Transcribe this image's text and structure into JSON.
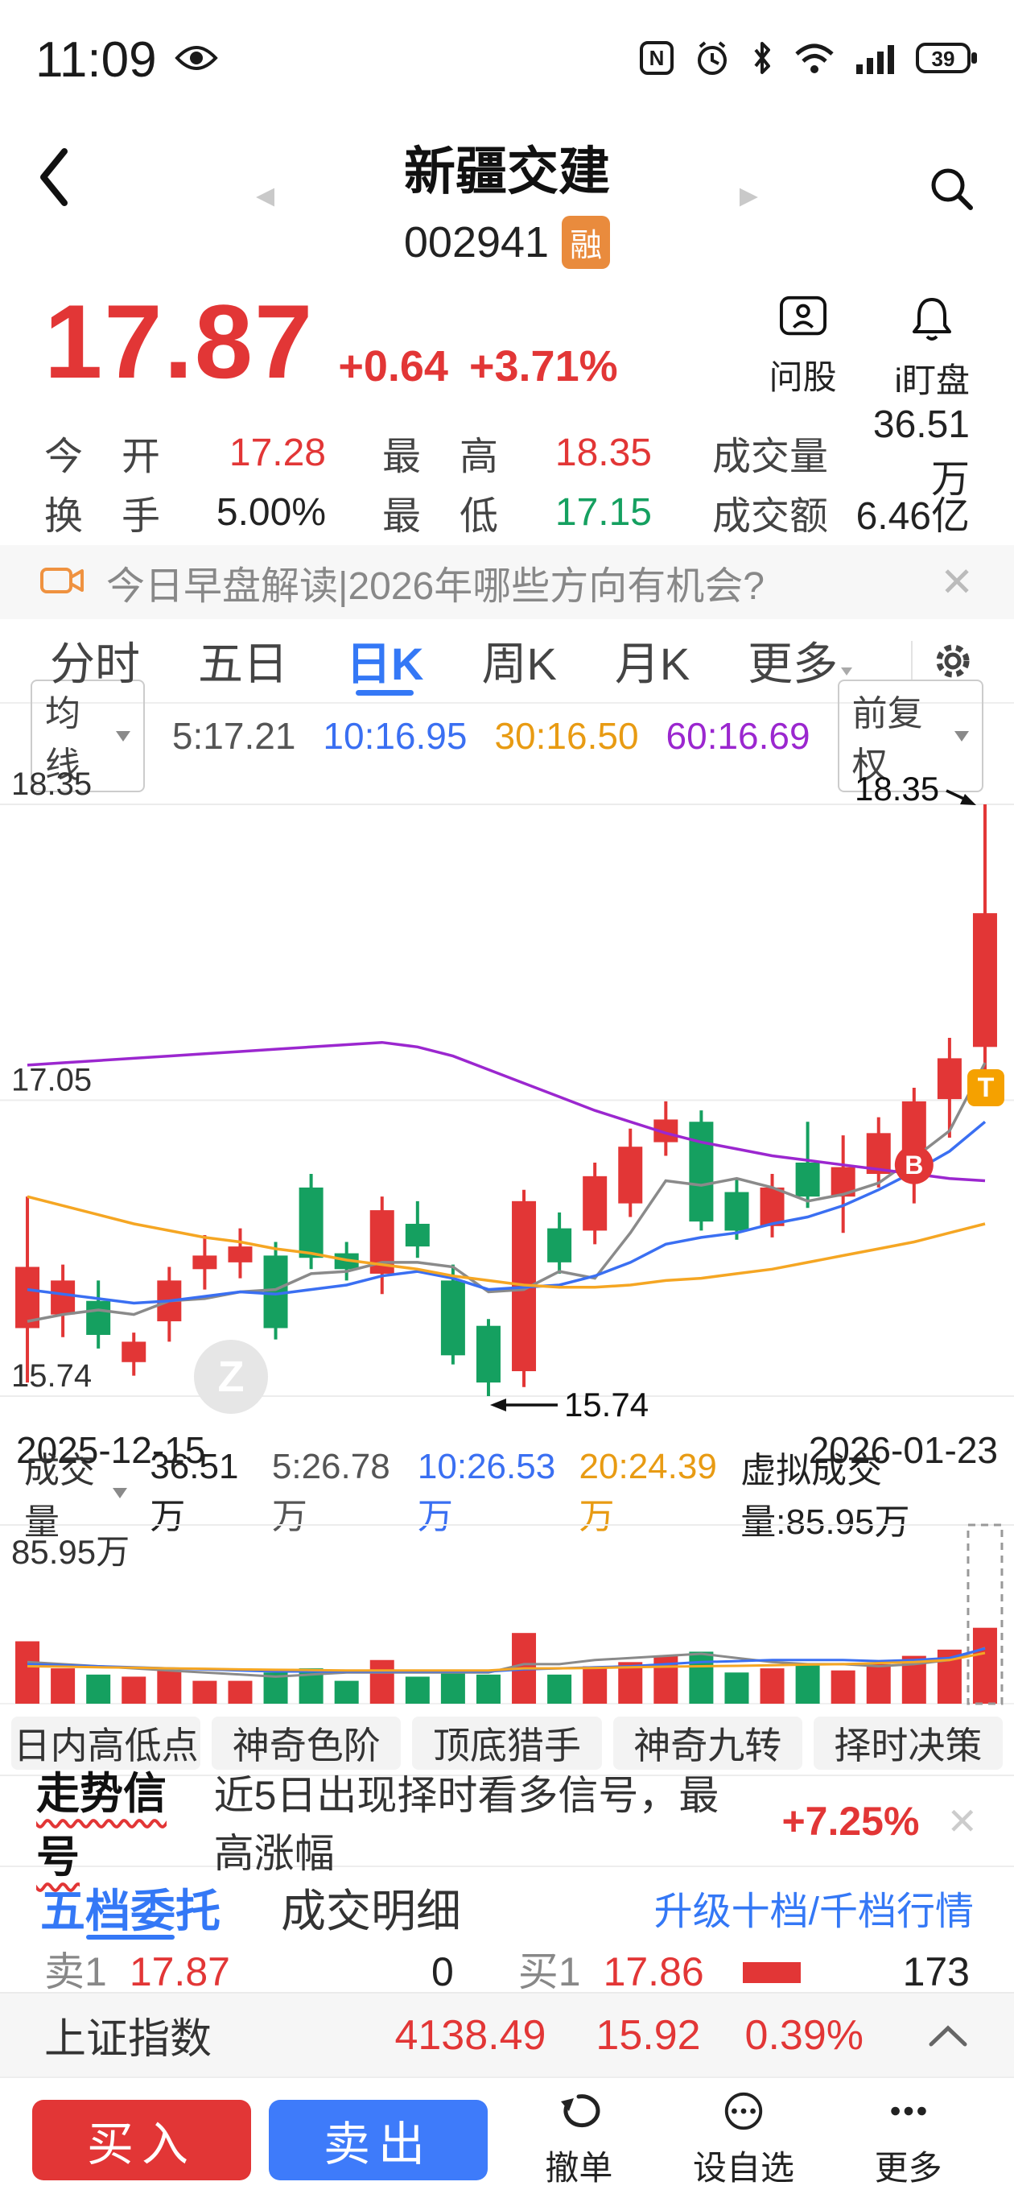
{
  "status_bar": {
    "time": "11:09",
    "battery_level": "39"
  },
  "header": {
    "title": "新疆交建",
    "code": "002941",
    "margin_badge": "融"
  },
  "quote": {
    "price": "17.87",
    "change": "+0.64",
    "change_pct": "+3.71%",
    "actions": [
      {
        "label": "问股"
      },
      {
        "label": "i盯盘"
      }
    ],
    "stats": [
      {
        "label": "今　开",
        "value": "17.28"
      },
      {
        "label": "最　高",
        "value": "18.35"
      },
      {
        "label": "成交量",
        "value": "36.51万"
      },
      {
        "label": "换　手",
        "value": "5.00%"
      },
      {
        "label": "最　低",
        "value": "17.15"
      },
      {
        "label": "成交额",
        "value": "6.46亿"
      }
    ]
  },
  "news_banner": {
    "text": "今日早盘解读|2026年哪些方向有机会?",
    "close": "✕"
  },
  "period_tabs": {
    "items": [
      "分时",
      "五日",
      "日K",
      "周K",
      "月K",
      "更多"
    ],
    "active": "日K"
  },
  "ma_bar": {
    "label": "均线",
    "items": [
      "5:17.21",
      "10:16.95",
      "30:16.50",
      "60:16.69"
    ],
    "adjust": "前复权"
  },
  "chart_data": {
    "type": "candlestick",
    "title": "新疆交建 日K",
    "x_range": {
      "start": "2025-12-15",
      "end": "2026-01-23"
    },
    "y_axis": {
      "labels": [
        "18.35",
        "17.05",
        "15.74"
      ],
      "values": [
        18.35,
        17.045,
        15.74
      ]
    },
    "colors": {
      "up": "#e23636",
      "down": "#15a060",
      "ma5": "#8a8a8a",
      "ma10": "#3a6ff2",
      "ma30": "#f5a623",
      "ma60": "#9b27cf",
      "t_badge": "#f5a100"
    },
    "candles": [
      [
        16.04,
        16.62,
        15.8,
        16.31
      ],
      [
        16.1,
        16.32,
        16.0,
        16.25
      ],
      [
        16.16,
        16.25,
        15.95,
        16.01
      ],
      [
        15.89,
        16.02,
        15.83,
        15.98
      ],
      [
        16.07,
        16.31,
        15.98,
        16.25
      ],
      [
        16.3,
        16.45,
        16.21,
        16.36
      ],
      [
        16.33,
        16.48,
        16.26,
        16.4
      ],
      [
        16.36,
        16.42,
        15.99,
        16.04
      ],
      [
        16.66,
        16.72,
        16.3,
        16.35
      ],
      [
        16.37,
        16.42,
        16.25,
        16.3
      ],
      [
        16.28,
        16.62,
        16.19,
        16.56
      ],
      [
        16.5,
        16.6,
        16.35,
        16.4
      ],
      [
        16.25,
        16.32,
        15.88,
        15.92
      ],
      [
        16.05,
        16.08,
        15.74,
        15.8
      ],
      [
        15.85,
        16.65,
        15.78,
        16.6
      ],
      [
        16.48,
        16.55,
        16.28,
        16.33
      ],
      [
        16.47,
        16.77,
        16.41,
        16.71
      ],
      [
        16.59,
        16.92,
        16.53,
        16.84
      ],
      [
        16.86,
        17.04,
        16.8,
        16.96
      ],
      [
        16.95,
        17.0,
        16.47,
        16.51
      ],
      [
        16.64,
        16.7,
        16.43,
        16.47
      ],
      [
        16.49,
        16.72,
        16.44,
        16.66
      ],
      [
        16.77,
        16.95,
        16.57,
        16.62
      ],
      [
        16.62,
        16.89,
        16.46,
        16.75
      ],
      [
        16.72,
        16.97,
        16.66,
        16.9
      ],
      [
        16.72,
        17.1,
        16.59,
        17.04
      ],
      [
        17.05,
        17.32,
        16.88,
        17.23
      ],
      [
        17.28,
        18.35,
        17.15,
        17.87
      ]
    ],
    "ma5": [
      16.07,
      16.1,
      16.12,
      16.1,
      16.16,
      16.17,
      16.2,
      16.21,
      16.28,
      16.29,
      16.33,
      16.33,
      16.31,
      16.2,
      16.21,
      16.29,
      16.26,
      16.46,
      16.69,
      16.67,
      16.7,
      16.66,
      16.6,
      16.63,
      16.68,
      16.79,
      16.91,
      17.21
    ],
    "ma10": [
      16.21,
      16.19,
      16.17,
      16.15,
      16.16,
      16.18,
      16.2,
      16.19,
      16.21,
      16.23,
      16.27,
      16.29,
      16.26,
      16.21,
      16.22,
      16.23,
      16.27,
      16.33,
      16.41,
      16.44,
      16.46,
      16.5,
      16.53,
      16.58,
      16.65,
      16.73,
      16.82,
      16.95
    ],
    "ma30": [
      16.62,
      16.58,
      16.54,
      16.5,
      16.47,
      16.44,
      16.42,
      16.39,
      16.37,
      16.34,
      16.32,
      16.3,
      16.27,
      16.25,
      16.23,
      16.22,
      16.22,
      16.23,
      16.25,
      16.26,
      16.28,
      16.3,
      16.33,
      16.36,
      16.39,
      16.42,
      16.46,
      16.5
    ],
    "ma60": [
      17.2,
      17.21,
      17.22,
      17.23,
      17.24,
      17.25,
      17.26,
      17.27,
      17.28,
      17.29,
      17.3,
      17.28,
      17.24,
      17.18,
      17.12,
      17.06,
      17.0,
      16.95,
      16.9,
      16.86,
      16.83,
      16.8,
      16.78,
      16.76,
      16.74,
      16.72,
      16.7,
      16.69
    ],
    "annotations": {
      "high_text": "18.35",
      "low_text": "15.74",
      "low_index": 13,
      "b_text": "B",
      "b_index": 25,
      "b_price": 16.76,
      "t_text": "T",
      "t_price": 17.1,
      "watermark": "Z"
    },
    "volume": {
      "axis_max": 85.95,
      "axis_max_label": "85.95万",
      "virtual_total": 85.95,
      "values": [
        30,
        17,
        14,
        13,
        16,
        11,
        11,
        15,
        17,
        11,
        21,
        13,
        15,
        14,
        34,
        14,
        18,
        20,
        23,
        25,
        15,
        17,
        19,
        16,
        19,
        23,
        26,
        36.51
      ],
      "vma5": [
        20,
        19,
        18,
        17,
        16,
        15,
        14,
        13,
        14,
        15,
        15,
        15,
        15,
        15,
        19,
        19,
        21,
        22,
        23,
        24,
        22,
        20,
        19,
        19,
        18,
        19,
        21,
        26.78
      ],
      "vma10": [
        19,
        18.5,
        18,
        17.5,
        17,
        16.5,
        16,
        15.5,
        15.5,
        15.5,
        15.5,
        15.5,
        15.5,
        15.5,
        16.5,
        17,
        17.5,
        18,
        19,
        20,
        20.5,
        21,
        21,
        21,
        20.5,
        21,
        22,
        26.53
      ],
      "vma20": [
        18,
        17.8,
        17.5,
        17.3,
        17,
        16.8,
        16.5,
        16.3,
        16.2,
        16,
        16,
        16,
        16,
        16,
        17,
        17,
        17.2,
        17.5,
        17.8,
        18,
        18.2,
        18.5,
        18.8,
        19,
        19.5,
        20,
        21,
        24.39
      ]
    }
  },
  "volume_legend": {
    "label": "成交量",
    "total": "36.51万",
    "items": [
      "5:26.78万",
      "10:26.53万",
      "20:24.39万"
    ],
    "virtual": "虚拟成交量:85.95万"
  },
  "tool_buttons": [
    "日内高低点",
    "神奇色阶",
    "顶底猎手",
    "神奇九转",
    "择时决策"
  ],
  "signal_banner": {
    "title": "走势信号",
    "text": "近5日出现择时看多信号，最高涨幅",
    "highlight": "+7.25%",
    "close": "✕"
  },
  "orderbook": {
    "tabs": [
      "五档委托",
      "成交明细"
    ],
    "active": "五档委托",
    "upgrade_link": "升级十档/千档行情",
    "row": {
      "sell_label": "卖1",
      "sell_price": "17.87",
      "sell_vol": "0",
      "buy_label": "买1",
      "buy_price": "17.86",
      "buy_vol": "173"
    }
  },
  "index_bar": {
    "name": "上证指数",
    "value": "4138.49",
    "change": "15.92",
    "pct": "0.39%"
  },
  "action_bar": {
    "buy": "买入",
    "sell": "卖出",
    "items": [
      "撤单",
      "设自选",
      "更多"
    ]
  }
}
